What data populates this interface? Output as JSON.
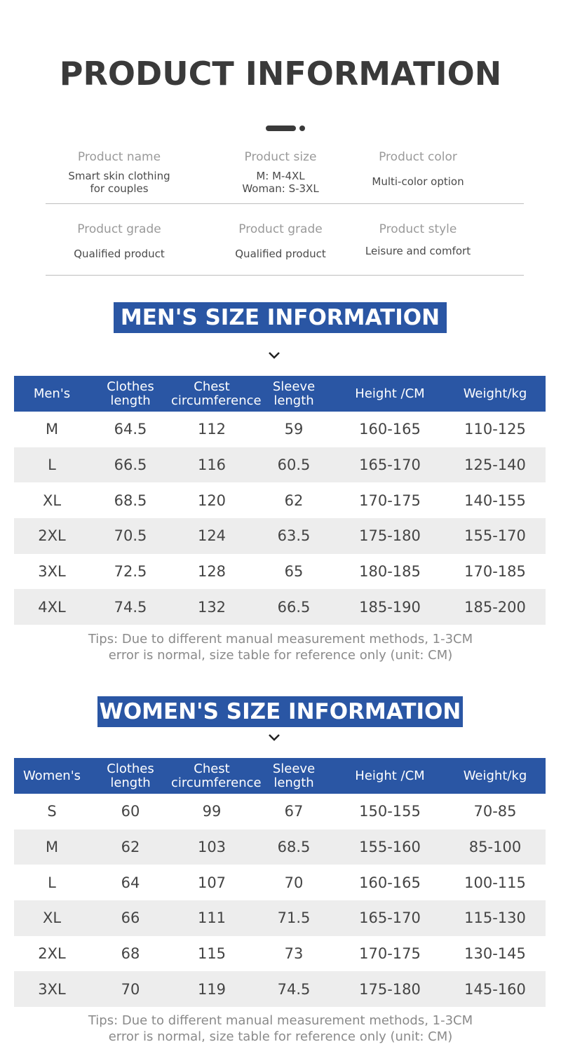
{
  "title": "PRODUCT INFORMATION",
  "info": [
    [
      {
        "label": "Product name",
        "value_lines": [
          "Smart skin clothing",
          "for couples"
        ]
      },
      {
        "label": "Product size",
        "value_lines": [
          "M: M-4XL",
          "Woman: S-3XL"
        ]
      },
      {
        "label": "Product color",
        "value_lines": [
          "Multi-color option"
        ]
      }
    ],
    [
      {
        "label": "Product grade",
        "value_lines": [
          "Qualified product"
        ]
      },
      {
        "label": "Product grade",
        "value_lines": [
          "Qualified product"
        ]
      },
      {
        "label": "Product style",
        "value_lines": [
          "Leisure and comfort"
        ]
      }
    ]
  ],
  "icons": {
    "chevron": "chevron-down-icon",
    "divider": "dots-divider-icon"
  },
  "colors": {
    "accent": "#2a56a4",
    "title": "#3a3a3a",
    "stripe": "#ededed"
  },
  "men": {
    "banner": "MEN'S SIZE INFORMATION",
    "headers": [
      [
        "Men's"
      ],
      [
        "Clothes",
        "length"
      ],
      [
        "Chest",
        "circumference"
      ],
      [
        "Sleeve",
        "length"
      ],
      [
        "Height /CM"
      ],
      [
        "Weight/kg"
      ]
    ],
    "rows": [
      [
        "M",
        "64.5",
        "112",
        "59",
        "160-165",
        "110-125"
      ],
      [
        "L",
        "66.5",
        "116",
        "60.5",
        "165-170",
        "125-140"
      ],
      [
        "XL",
        "68.5",
        "120",
        "62",
        "170-175",
        "140-155"
      ],
      [
        "2XL",
        "70.5",
        "124",
        "63.5",
        "175-180",
        "155-170"
      ],
      [
        "3XL",
        "72.5",
        "128",
        "65",
        "180-185",
        "170-185"
      ],
      [
        "4XL",
        "74.5",
        "132",
        "66.5",
        "185-190",
        "185-200"
      ]
    ],
    "tips": [
      "Tips: Due to different manual measurement methods, 1-3CM",
      "error is normal, size table for reference only (unit: CM)"
    ]
  },
  "women": {
    "banner": "WOMEN'S SIZE INFORMATION",
    "headers": [
      [
        "Women's"
      ],
      [
        "Clothes",
        "length"
      ],
      [
        "Chest",
        "circumference"
      ],
      [
        "Sleeve",
        "length"
      ],
      [
        "Height /CM"
      ],
      [
        "Weight/kg"
      ]
    ],
    "rows": [
      [
        "S",
        "60",
        "99",
        "67",
        "150-155",
        "70-85"
      ],
      [
        "M",
        "62",
        "103",
        "68.5",
        "155-160",
        "85-100"
      ],
      [
        "L",
        "64",
        "107",
        "70",
        "160-165",
        "100-115"
      ],
      [
        "XL",
        "66",
        "111",
        "71.5",
        "165-170",
        "115-130"
      ],
      [
        "2XL",
        "68",
        "115",
        "73",
        "170-175",
        "130-145"
      ],
      [
        "3XL",
        "70",
        "119",
        "74.5",
        "175-180",
        "145-160"
      ]
    ],
    "tips": [
      "Tips: Due to different manual measurement methods, 1-3CM",
      "error is normal, size table for reference only (unit: CM)"
    ]
  }
}
